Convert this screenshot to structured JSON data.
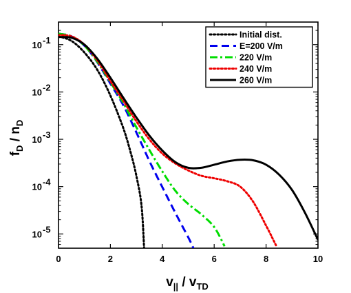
{
  "chart_data": {
    "type": "line",
    "title": "",
    "xlabel": {
      "main": "v",
      "sub1": "||",
      "sep": " / v",
      "sub2": "TD"
    },
    "ylabel": {
      "main": "f",
      "sub1": "D",
      "sep": " / n",
      "sub2": "D"
    },
    "xlim": [
      0,
      10
    ],
    "ylim": [
      5e-06,
      0.3
    ],
    "yscale": "log",
    "grid": false,
    "legend_position": "top-right",
    "x_ticks": [
      0,
      2,
      4,
      6,
      8,
      10
    ],
    "x_tick_labels": [
      "0",
      "2",
      "4",
      "6",
      "8",
      "10"
    ],
    "y_ticks": [
      1e-05,
      0.0001,
      0.001,
      0.01,
      0.1
    ],
    "y_tick_labels": [
      {
        "base": "10",
        "exp": "-5"
      },
      {
        "base": "10",
        "exp": "-4"
      },
      {
        "base": "10",
        "exp": "-3"
      },
      {
        "base": "10",
        "exp": "-2"
      },
      {
        "base": "10",
        "exp": "-1"
      }
    ],
    "series": [
      {
        "name": "Initial dist.",
        "color": "#000000",
        "style": "dotted",
        "x": [
          0,
          0.5,
          1.0,
          1.5,
          2.0,
          2.5,
          2.8,
          3.0,
          3.2,
          3.3
        ],
        "y": [
          0.15,
          0.12,
          0.068,
          0.029,
          0.0084,
          0.0017,
          0.00048,
          0.00017,
          4e-05,
          5e-06
        ]
      },
      {
        "name": "E=200 V/m",
        "color": "#0000ee",
        "style": "dashed",
        "x": [
          0,
          0.5,
          1.0,
          1.5,
          2.0,
          2.5,
          3.0,
          3.5,
          4.0,
          4.5,
          5.0,
          5.2
        ],
        "y": [
          0.17,
          0.15,
          0.095,
          0.042,
          0.015,
          0.0052,
          0.0014,
          0.00035,
          9.8e-05,
          2.8e-05,
          8.5e-06,
          5e-06
        ]
      },
      {
        "name": "220 V/m",
        "color": "#00dd00",
        "style": "dashdot",
        "x": [
          0,
          0.5,
          1.0,
          1.5,
          2.0,
          2.5,
          3.0,
          3.5,
          4.0,
          4.5,
          5.0,
          5.5,
          6.0,
          6.4
        ],
        "y": [
          0.17,
          0.15,
          0.095,
          0.043,
          0.016,
          0.0058,
          0.0018,
          0.0006,
          0.00021,
          8.2e-05,
          4.3e-05,
          2.6e-05,
          1.4e-05,
          5.5e-06
        ]
      },
      {
        "name": "240 V/m",
        "color": "#ee0000",
        "style": "dotted",
        "x": [
          0,
          0.5,
          1.0,
          1.5,
          2.0,
          2.5,
          3.0,
          3.5,
          4.0,
          4.5,
          5.0,
          5.5,
          6.0,
          6.5,
          7.0,
          7.5,
          8.0,
          8.4
        ],
        "y": [
          0.16,
          0.15,
          0.1,
          0.046,
          0.017,
          0.0065,
          0.0024,
          0.001,
          0.0005,
          0.00031,
          0.00022,
          0.00017,
          0.00015,
          0.00013,
          0.0001,
          4.8e-05,
          1.5e-05,
          5.5e-06
        ]
      },
      {
        "name": "260 V/m",
        "color": "#000000",
        "style": "solid",
        "x": [
          0,
          0.5,
          1.0,
          1.5,
          2.0,
          2.5,
          3.0,
          3.5,
          4.0,
          4.5,
          5.0,
          5.5,
          6.0,
          6.5,
          7.0,
          7.5,
          8.0,
          8.5,
          9.0,
          9.5,
          10.0
        ],
        "y": [
          0.145,
          0.14,
          0.1,
          0.05,
          0.02,
          0.0075,
          0.0029,
          0.0012,
          0.00058,
          0.00033,
          0.00025,
          0.00025,
          0.00029,
          0.00034,
          0.00037,
          0.00036,
          0.00029,
          0.00018,
          8.5e-05,
          2.8e-05,
          7.5e-06
        ]
      }
    ]
  }
}
